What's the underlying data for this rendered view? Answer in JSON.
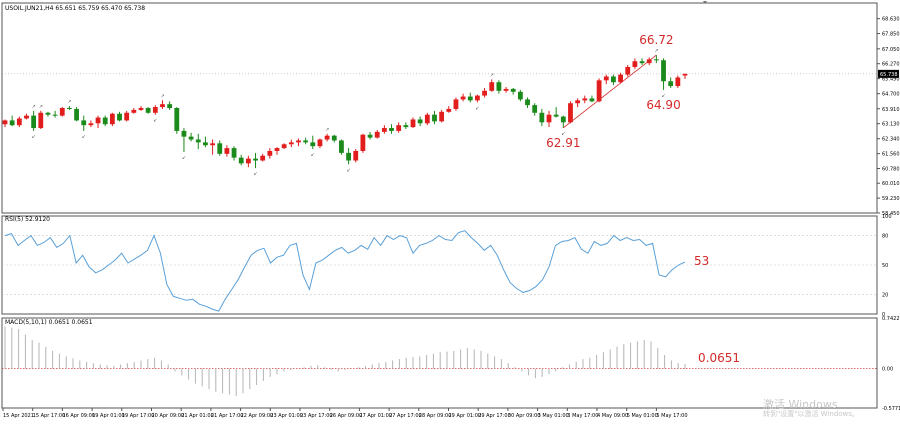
{
  "colors": {
    "bull": "#e11d1d",
    "bear": "#1a8a1a",
    "rsi_line": "#5aa0d8",
    "macd_bar": "#b4b4b4",
    "zero_line": "#d43a3a",
    "annotation": "#d42a2a",
    "grid": "#c8c8c8",
    "price_tag_bg": "#000000"
  },
  "watermark": {
    "line1": "激活 Windows",
    "line2": "转到\"设置\"以激活 Windows。"
  },
  "chart_data": [
    {
      "type": "candlestick",
      "title": "USOIL.JUN21,H4  65.651 65.759 65.470 65.738",
      "ylim": [
        58.45,
        69.45
      ],
      "y_ticks": [
        "68.630",
        "67.850",
        "67.050",
        "66.270",
        "65.490",
        "64.700",
        "63.910",
        "63.130",
        "62.340",
        "61.560",
        "60.780",
        "60.010",
        "59.230",
        "58.450"
      ],
      "current_price": "65.738",
      "dotted_level": 65.738,
      "candles": [
        [
          63.1,
          63.35,
          62.95,
          63.3
        ],
        [
          63.3,
          63.55,
          63.0,
          63.05
        ],
        [
          63.05,
          63.5,
          62.95,
          63.4
        ],
        [
          63.4,
          63.65,
          63.35,
          63.55
        ],
        [
          63.55,
          63.8,
          62.75,
          62.9
        ],
        [
          62.9,
          63.8,
          62.85,
          63.7
        ],
        [
          63.7,
          63.75,
          63.5,
          63.6
        ],
        [
          63.6,
          63.8,
          63.45,
          63.55
        ],
        [
          63.55,
          64.0,
          63.5,
          63.95
        ],
        [
          63.95,
          64.05,
          63.85,
          63.9
        ],
        [
          63.9,
          64.0,
          63.25,
          63.3
        ],
        [
          63.3,
          63.55,
          62.75,
          63.05
        ],
        [
          63.05,
          63.3,
          62.95,
          63.15
        ],
        [
          63.15,
          63.55,
          62.9,
          63.45
        ],
        [
          63.45,
          63.55,
          63.0,
          63.1
        ],
        [
          63.1,
          63.7,
          63.0,
          63.65
        ],
        [
          63.65,
          63.75,
          63.25,
          63.3
        ],
        [
          63.3,
          63.8,
          63.25,
          63.7
        ],
        [
          63.7,
          63.95,
          63.65,
          63.85
        ],
        [
          63.85,
          64.05,
          63.8,
          63.95
        ],
        [
          63.95,
          64.0,
          63.65,
          63.7
        ],
        [
          63.7,
          64.1,
          63.6,
          64.0
        ],
        [
          64.0,
          64.35,
          63.9,
          64.15
        ],
        [
          64.15,
          64.3,
          63.85,
          63.95
        ],
        [
          63.95,
          64.0,
          62.6,
          62.75
        ],
        [
          62.75,
          62.9,
          61.65,
          62.45
        ],
        [
          62.45,
          62.65,
          62.2,
          62.3
        ],
        [
          62.3,
          62.6,
          61.8,
          62.15
        ],
        [
          62.15,
          62.45,
          61.9,
          62.0
        ],
        [
          62.0,
          62.3,
          61.5,
          62.1
        ],
        [
          62.1,
          62.25,
          61.45,
          61.55
        ],
        [
          61.55,
          62.0,
          61.4,
          61.85
        ],
        [
          61.85,
          61.95,
          61.2,
          61.35
        ],
        [
          61.35,
          61.5,
          60.95,
          61.05
        ],
        [
          61.05,
          61.45,
          60.85,
          61.3
        ],
        [
          61.3,
          61.6,
          60.8,
          61.2
        ],
        [
          61.2,
          61.55,
          61.15,
          61.45
        ],
        [
          61.45,
          61.85,
          61.3,
          61.7
        ],
        [
          61.7,
          61.9,
          61.5,
          61.85
        ],
        [
          61.85,
          62.1,
          61.8,
          62.05
        ],
        [
          62.05,
          62.3,
          61.9,
          62.15
        ],
        [
          62.15,
          62.35,
          61.95,
          62.25
        ],
        [
          62.25,
          62.4,
          62.05,
          62.15
        ],
        [
          62.15,
          62.5,
          61.8,
          61.95
        ],
        [
          61.95,
          62.35,
          61.85,
          62.3
        ],
        [
          62.3,
          62.6,
          62.2,
          62.5
        ],
        [
          62.5,
          62.55,
          62.15,
          62.25
        ],
        [
          62.25,
          62.3,
          61.5,
          61.6
        ],
        [
          61.6,
          61.85,
          61.0,
          61.2
        ],
        [
          61.2,
          61.8,
          61.1,
          61.7
        ],
        [
          61.7,
          62.6,
          61.6,
          62.55
        ],
        [
          62.55,
          62.7,
          62.3,
          62.4
        ],
        [
          62.4,
          62.8,
          62.35,
          62.7
        ],
        [
          62.7,
          63.05,
          62.6,
          62.9
        ],
        [
          62.9,
          63.1,
          62.6,
          62.75
        ],
        [
          62.75,
          63.2,
          62.65,
          63.05
        ],
        [
          63.05,
          63.2,
          62.85,
          62.95
        ],
        [
          62.95,
          63.45,
          62.9,
          63.35
        ],
        [
          63.35,
          63.5,
          63.0,
          63.15
        ],
        [
          63.15,
          63.7,
          63.05,
          63.6
        ],
        [
          63.6,
          63.8,
          63.1,
          63.25
        ],
        [
          63.25,
          63.85,
          63.2,
          63.75
        ],
        [
          63.75,
          64.05,
          63.7,
          63.9
        ],
        [
          63.9,
          64.5,
          63.8,
          64.4
        ],
        [
          64.4,
          64.7,
          64.3,
          64.55
        ],
        [
          64.55,
          64.75,
          64.25,
          64.35
        ],
        [
          64.35,
          64.65,
          64.25,
          64.6
        ],
        [
          64.6,
          65.0,
          64.5,
          64.85
        ],
        [
          64.85,
          65.45,
          64.8,
          65.3
        ],
        [
          65.3,
          65.4,
          64.7,
          64.85
        ],
        [
          64.85,
          65.05,
          64.75,
          64.95
        ],
        [
          64.95,
          65.0,
          64.65,
          64.8
        ],
        [
          64.8,
          64.9,
          64.3,
          64.4
        ],
        [
          64.4,
          64.5,
          63.95,
          64.1
        ],
        [
          64.1,
          64.2,
          63.55,
          63.7
        ],
        [
          63.7,
          63.9,
          63.0,
          63.2
        ],
        [
          63.2,
          63.8,
          62.95,
          63.6
        ],
        [
          63.6,
          64.0,
          63.45,
          63.5
        ],
        [
          63.5,
          63.55,
          62.91,
          63.2
        ],
        [
          63.2,
          64.3,
          63.15,
          64.2
        ],
        [
          64.2,
          64.45,
          64.0,
          64.35
        ],
        [
          64.35,
          64.6,
          64.2,
          64.45
        ],
        [
          64.45,
          64.6,
          64.25,
          64.3
        ],
        [
          64.3,
          65.5,
          64.25,
          65.4
        ],
        [
          65.4,
          65.7,
          65.2,
          65.6
        ],
        [
          65.6,
          65.7,
          65.15,
          65.3
        ],
        [
          65.3,
          65.8,
          65.25,
          65.7
        ],
        [
          65.7,
          66.2,
          65.6,
          66.1
        ],
        [
          66.1,
          66.55,
          66.0,
          66.4
        ],
        [
          66.4,
          66.55,
          66.2,
          66.3
        ],
        [
          66.3,
          66.6,
          66.2,
          66.5
        ],
        [
          66.5,
          66.72,
          66.3,
          66.45
        ],
        [
          66.45,
          66.55,
          64.9,
          65.35
        ],
        [
          65.35,
          65.55,
          65.0,
          65.1
        ],
        [
          65.1,
          65.65,
          65.0,
          65.55
        ],
        [
          65.651,
          65.759,
          65.47,
          65.738
        ]
      ],
      "annotations": [
        {
          "label": "66.72",
          "candle": 91,
          "price": 66.72,
          "position": "above"
        },
        {
          "label": "64.90",
          "candle": 92,
          "price": 64.9,
          "position": "below"
        },
        {
          "label": "62.91",
          "candle": 78,
          "price": 62.91,
          "position": "below"
        }
      ],
      "trend_line": [
        [
          78,
          62.91
        ],
        [
          91,
          66.72
        ]
      ],
      "x_ticks": [
        "15 Apr 2021",
        "15 Apr 17:00",
        "16 Apr 09:00",
        "19 Apr 01:00",
        "19 Apr 17:00",
        "20 Apr 09:00",
        "21 Apr 01:00",
        "21 Apr 17:00",
        "22 Apr 09:00",
        "23 Apr 01:00",
        "23 Apr 17:00",
        "26 Apr 09:00",
        "27 Apr 01:00",
        "27 Apr 17:00",
        "28 Apr 09:00",
        "29 Apr 01:00",
        "29 Apr 17:00",
        "30 Apr 09:00",
        "3 May 01:00",
        "3 May 17:00",
        "4 May 09:00",
        "5 May 01:00",
        "5 May 17:00"
      ]
    },
    {
      "type": "line",
      "title": "RSI(5) 52.9120",
      "ylim": [
        0,
        100
      ],
      "y_ticks": [
        "100",
        "80",
        "50",
        "20",
        "0"
      ],
      "levels": [
        80,
        50,
        20
      ],
      "annotation": "53",
      "values": [
        80,
        82,
        70,
        75,
        80,
        70,
        73,
        78,
        68,
        72,
        80,
        52,
        60,
        48,
        42,
        45,
        50,
        55,
        62,
        52,
        56,
        60,
        65,
        80,
        62,
        30,
        18,
        16,
        14,
        15,
        10,
        8,
        5,
        3,
        15,
        25,
        35,
        48,
        60,
        65,
        67,
        52,
        58,
        60,
        70,
        72,
        40,
        25,
        52,
        55,
        60,
        65,
        68,
        62,
        65,
        70,
        66,
        78,
        70,
        80,
        76,
        80,
        78,
        62,
        70,
        72,
        75,
        80,
        76,
        75,
        83,
        85,
        78,
        72,
        65,
        70,
        60,
        45,
        32,
        26,
        22,
        24,
        28,
        35,
        48,
        70,
        74,
        75,
        78,
        66,
        62,
        74,
        70,
        72,
        80,
        75,
        78,
        75,
        76,
        70,
        72,
        40,
        38,
        45,
        50,
        53
      ]
    },
    {
      "type": "bar",
      "title": "MACD(5,10,1) 0.0651 0.0651",
      "ylim": [
        -0.5771,
        0.7422
      ],
      "y_ticks": [
        "0.7422",
        "0.00",
        "-0.5771"
      ],
      "annotation": "0.0651",
      "values": [
        0.62,
        0.6,
        0.58,
        0.5,
        0.42,
        0.38,
        0.32,
        0.26,
        0.22,
        0.18,
        0.15,
        0.12,
        0.1,
        0.08,
        0.06,
        0.05,
        0.04,
        0.06,
        0.08,
        0.1,
        0.12,
        0.14,
        0.16,
        0.12,
        0.06,
        -0.04,
        -0.1,
        -0.16,
        -0.22,
        -0.26,
        -0.3,
        -0.34,
        -0.36,
        -0.38,
        -0.4,
        -0.36,
        -0.3,
        -0.24,
        -0.18,
        -0.12,
        -0.08,
        -0.04,
        -0.02,
        0.0,
        0.02,
        0.04,
        0.05,
        0.02,
        -0.02,
        -0.04,
        -0.02,
        0.0,
        0.02,
        0.04,
        0.06,
        0.08,
        0.1,
        0.12,
        0.14,
        0.16,
        0.17,
        0.18,
        0.2,
        0.22,
        0.24,
        0.25,
        0.26,
        0.28,
        0.3,
        0.28,
        0.26,
        0.22,
        0.18,
        0.14,
        0.08,
        0.02,
        -0.04,
        -0.1,
        -0.14,
        -0.12,
        -0.08,
        -0.04,
        0.02,
        0.06,
        0.1,
        0.14,
        0.16,
        0.2,
        0.24,
        0.28,
        0.32,
        0.36,
        0.38,
        0.4,
        0.42,
        0.4,
        0.3,
        0.2,
        0.12,
        0.08,
        0.07
      ]
    }
  ]
}
